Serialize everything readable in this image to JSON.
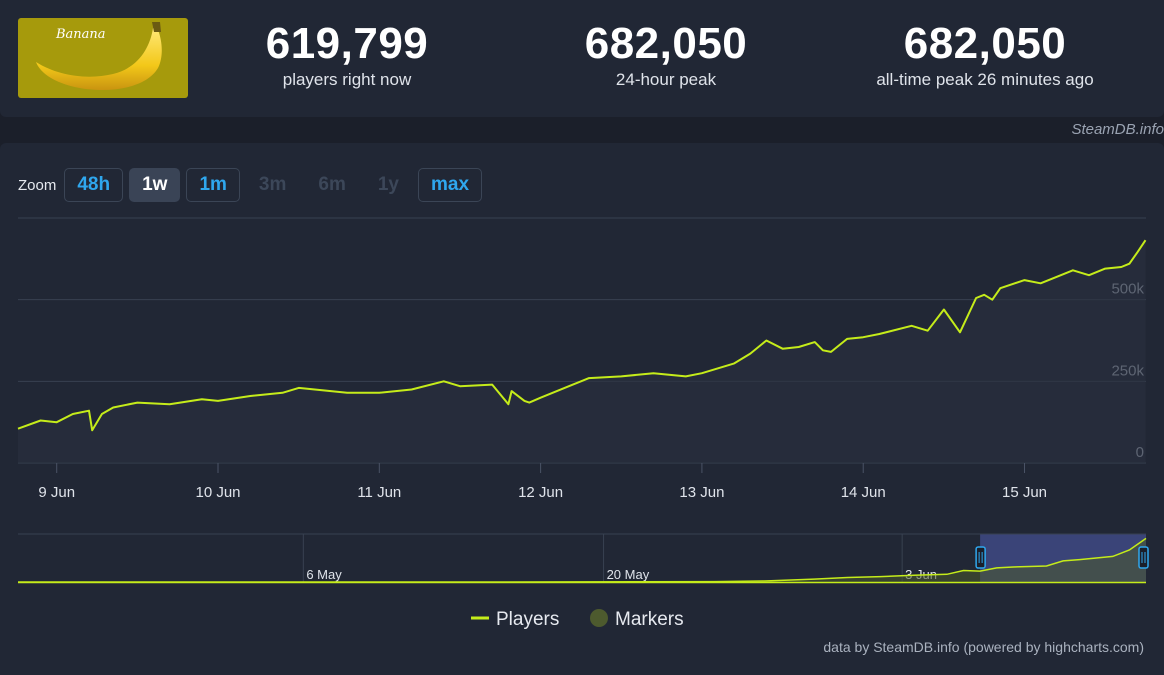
{
  "header": {
    "logo_text": "Banana",
    "stats": [
      {
        "value": "619,799",
        "label": "players right now"
      },
      {
        "value": "682,050",
        "label": "24-hour peak"
      },
      {
        "value": "682,050",
        "label": "all-time peak 26 minutes ago"
      }
    ],
    "credit": "SteamDB.info"
  },
  "zoom": {
    "label": "Zoom",
    "buttons": [
      {
        "label": "48h",
        "state": "enabled"
      },
      {
        "label": "1w",
        "state": "active"
      },
      {
        "label": "1m",
        "state": "enabled"
      },
      {
        "label": "3m",
        "state": "disabled"
      },
      {
        "label": "6m",
        "state": "disabled"
      },
      {
        "label": "1y",
        "state": "disabled"
      },
      {
        "label": "max",
        "state": "enabled"
      }
    ]
  },
  "colors": {
    "line": "#c5ec1a",
    "navigator_selection": "#3a4478",
    "marker": "#4d5a2e",
    "button_accent": "#2fa7ee"
  },
  "chart_data": {
    "type": "line",
    "title": "",
    "ylim": [
      0,
      750000
    ],
    "yticks": [
      0,
      250000,
      500000
    ],
    "ytick_labels": [
      "0",
      "250k",
      "500k"
    ],
    "xticks": [
      "9 Jun",
      "10 Jun",
      "11 Jun",
      "12 Jun",
      "13 Jun",
      "14 Jun",
      "15 Jun"
    ],
    "grid": true,
    "legend": {
      "placement": "bottom",
      "entries": [
        "Players",
        "Markers"
      ]
    },
    "series": [
      {
        "name": "Players",
        "x": [
          8.76,
          8.9,
          9.0,
          9.1,
          9.2,
          9.22,
          9.28,
          9.35,
          9.5,
          9.7,
          9.9,
          10.0,
          10.2,
          10.4,
          10.5,
          10.6,
          10.8,
          11.0,
          11.2,
          11.4,
          11.5,
          11.7,
          11.8,
          11.82,
          11.9,
          11.93,
          12.0,
          12.2,
          12.3,
          12.5,
          12.7,
          12.9,
          13.0,
          13.2,
          13.3,
          13.4,
          13.5,
          13.6,
          13.7,
          13.75,
          13.8,
          13.9,
          14.0,
          14.1,
          14.3,
          14.4,
          14.5,
          14.6,
          14.7,
          14.75,
          14.8,
          14.85,
          15.0,
          15.1,
          15.2,
          15.3,
          15.4,
          15.5,
          15.6,
          15.65,
          15.7,
          15.75
        ],
        "y": [
          105000,
          130000,
          125000,
          150000,
          160000,
          100000,
          150000,
          170000,
          185000,
          180000,
          195000,
          190000,
          205000,
          215000,
          230000,
          225000,
          215000,
          215000,
          225000,
          250000,
          235000,
          240000,
          180000,
          220000,
          190000,
          185000,
          200000,
          240000,
          260000,
          265000,
          275000,
          265000,
          275000,
          305000,
          335000,
          375000,
          350000,
          355000,
          370000,
          345000,
          340000,
          380000,
          385000,
          395000,
          420000,
          405000,
          470000,
          400000,
          505000,
          515000,
          500000,
          535000,
          560000,
          550000,
          570000,
          590000,
          575000,
          595000,
          600000,
          610000,
          645000,
          682000
        ]
      },
      {
        "name": "Navigator",
        "x": [
          0,
          14,
          28,
          42,
          45,
          48,
          50,
          52,
          54,
          56,
          57,
          58,
          59,
          60,
          62,
          63,
          64,
          66,
          67,
          68
        ],
        "y": [
          0,
          0,
          0,
          6000,
          16000,
          45000,
          70000,
          85000,
          105000,
          120000,
          180000,
          170000,
          220000,
          235000,
          250000,
          330000,
          350000,
          400000,
          500000,
          682000
        ]
      }
    ],
    "navigator": {
      "x_labels": [
        "6 May",
        "20 May",
        "3 Jun"
      ],
      "selection": [
        "8 Jun",
        "15 Jun"
      ]
    },
    "source": "data by SteamDB.info (powered by highcharts.com)"
  }
}
